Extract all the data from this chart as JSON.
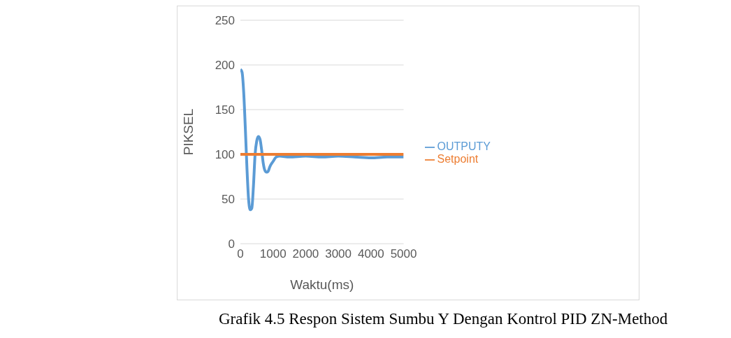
{
  "chart_data": {
    "type": "line",
    "xlabel": "Waktu(ms)",
    "ylabel": "PIKSEL",
    "xlim": [
      0,
      5000
    ],
    "xticks": [
      0,
      1000,
      2000,
      3000,
      4000,
      5000
    ],
    "ylim": [
      0,
      250
    ],
    "yticks": [
      0,
      50,
      100,
      150,
      200,
      250
    ],
    "grid": "y",
    "legend": "right",
    "marker": "none",
    "line_style": "solid",
    "series": [
      {
        "name": "OUTPUTY",
        "color": "#5b9bd5",
        "x": [
          0,
          50,
          100,
          150,
          200,
          250,
          300,
          350,
          400,
          450,
          500,
          550,
          600,
          650,
          700,
          750,
          800,
          850,
          900,
          1000,
          1100,
          1200,
          1500,
          2000,
          2500,
          3000,
          3500,
          4000,
          4500,
          5000
        ],
        "values": [
          195,
          192,
          170,
          130,
          85,
          50,
          38,
          40,
          65,
          100,
          115,
          120,
          117,
          105,
          90,
          82,
          80,
          81,
          86,
          92,
          97,
          98,
          97,
          98,
          97,
          98,
          97,
          96,
          97,
          97
        ]
      },
      {
        "name": "Setpoint",
        "color": "#ed7d31",
        "x": [
          0,
          5000
        ],
        "values": [
          100,
          100
        ]
      }
    ],
    "annotations": [
      "Grafik 4.5 Respon Sistem Sumbu Y Dengan Kontrol PID ZN-Method"
    ]
  }
}
